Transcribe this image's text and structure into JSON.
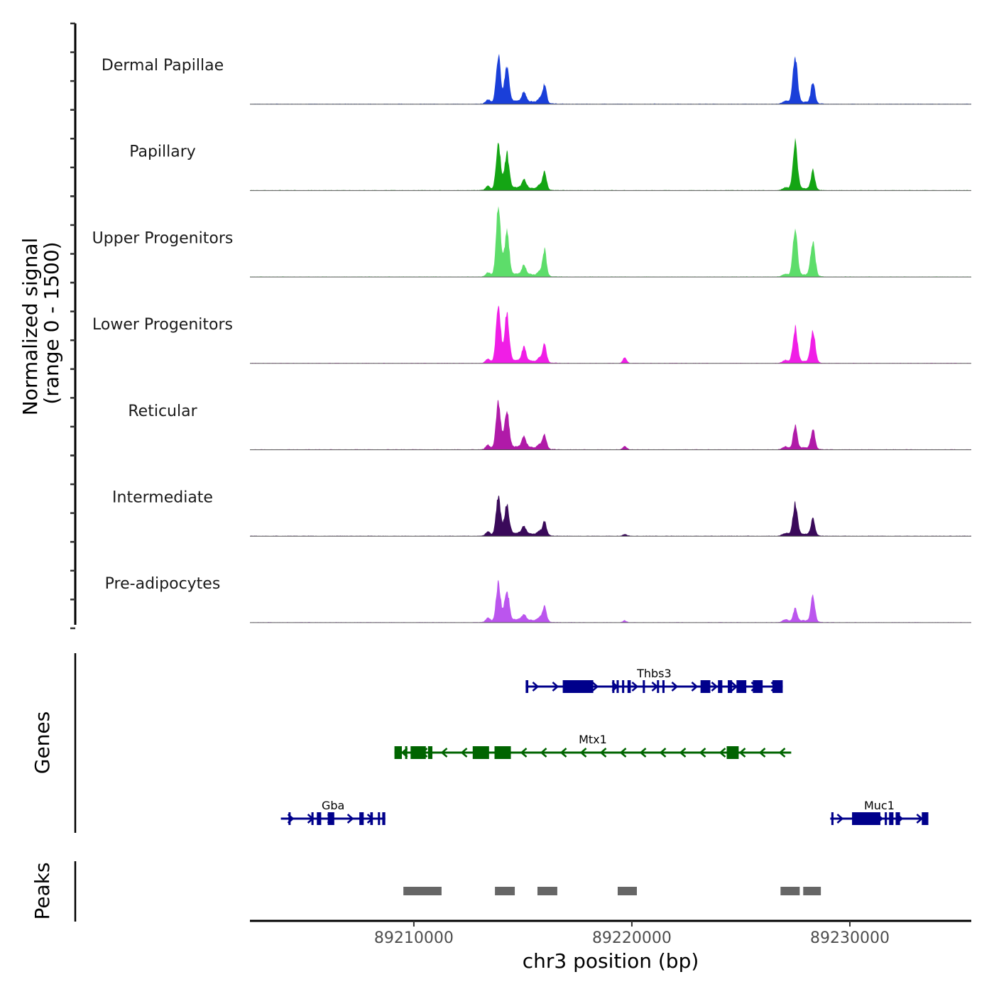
{
  "chart_data": {
    "type": "area",
    "title": "",
    "xlabel": "chr3 position (bp)",
    "ylabel": "Normalized signal\n(range 0 - 1500)",
    "ylabel_lines": [
      "Normalized signal",
      "(range 0 - 1500)"
    ],
    "xlim": [
      89202480,
      89235570
    ],
    "ylim": [
      0,
      1500
    ],
    "x_ticks": [
      89210000,
      89220000,
      89230000
    ],
    "x_tick_labels": [
      "89210000",
      "89220000",
      "89230000"
    ],
    "y_ticks_per_track": [
      0,
      500,
      1000,
      1500
    ],
    "grid": false,
    "legend": "none",
    "tracks": [
      {
        "name": "Dermal Papillae",
        "color": "#1a3fd9",
        "peaks": [
          [
            89213876,
            1000
          ],
          [
            89214267,
            780
          ],
          [
            89215049,
            200
          ],
          [
            89215993,
            400
          ],
          [
            89227492,
            1000
          ],
          [
            89228306,
            450
          ]
        ]
      },
      {
        "name": "Papillary",
        "color": "#14a514",
        "peaks": [
          [
            89213876,
            950
          ],
          [
            89214267,
            740
          ],
          [
            89215049,
            180
          ],
          [
            89215993,
            400
          ],
          [
            89227492,
            1000
          ],
          [
            89228306,
            400
          ]
        ]
      },
      {
        "name": "Upper Progenitors",
        "color": "#5ddd6a",
        "peaks": [
          [
            89213876,
            1450
          ],
          [
            89214267,
            930
          ],
          [
            89215049,
            200
          ],
          [
            89215993,
            560
          ],
          [
            89227492,
            1000
          ],
          [
            89228306,
            700
          ]
        ]
      },
      {
        "name": "Lower Progenitors",
        "color": "#f01ee6",
        "peaks": [
          [
            89213876,
            1300
          ],
          [
            89214267,
            1000
          ],
          [
            89215049,
            280
          ],
          [
            89215993,
            400
          ],
          [
            89219674,
            120
          ],
          [
            89227492,
            720
          ],
          [
            89228306,
            660
          ]
        ]
      },
      {
        "name": "Reticular",
        "color": "#b01aa8",
        "peaks": [
          [
            89213876,
            1040
          ],
          [
            89214267,
            780
          ],
          [
            89215049,
            230
          ],
          [
            89215993,
            310
          ],
          [
            89219674,
            70
          ],
          [
            89227492,
            510
          ],
          [
            89228306,
            430
          ]
        ]
      },
      {
        "name": "Intermediate",
        "color": "#3a0a5a",
        "peaks": [
          [
            89213876,
            820
          ],
          [
            89214267,
            630
          ],
          [
            89215049,
            150
          ],
          [
            89215993,
            290
          ],
          [
            89219674,
            40
          ],
          [
            89227492,
            650
          ],
          [
            89228306,
            340
          ]
        ]
      },
      {
        "name": "Pre-adipocytes",
        "color": "#bb55ee",
        "peaks": [
          [
            89213876,
            820
          ],
          [
            89214267,
            650
          ],
          [
            89215049,
            110
          ],
          [
            89215993,
            340
          ],
          [
            89219674,
            40
          ],
          [
            89227492,
            280
          ],
          [
            89228306,
            570
          ]
        ]
      }
    ],
    "genes_track_label": "Genes",
    "genes": [
      {
        "name": "Thbs3",
        "strand": "+",
        "start": 89215130,
        "end": 89226920,
        "row": 0,
        "color": "#00008b",
        "exons": [
          [
            89215130,
            89215250
          ],
          [
            89216830,
            89218230
          ],
          [
            89219100,
            89219200
          ],
          [
            89219300,
            89219400
          ],
          [
            89219550,
            89219650
          ],
          [
            89219800,
            89219950
          ],
          [
            89220500,
            89220600
          ],
          [
            89221150,
            89221250
          ],
          [
            89221400,
            89221500
          ],
          [
            89223150,
            89223600
          ],
          [
            89223950,
            89224150
          ],
          [
            89224400,
            89224600
          ],
          [
            89224800,
            89225250
          ],
          [
            89225550,
            89226000
          ],
          [
            89226450,
            89226920
          ]
        ]
      },
      {
        "name": "Mtx1",
        "strand": "-",
        "start": 89209110,
        "end": 89227310,
        "row": 1,
        "color": "#006400",
        "exons": [
          [
            89209110,
            89209450
          ],
          [
            89209600,
            89209700
          ],
          [
            89209850,
            89210550
          ],
          [
            89210650,
            89210850
          ],
          [
            89212700,
            89213450
          ],
          [
            89213700,
            89214450
          ],
          [
            89224350,
            89224900
          ]
        ]
      },
      {
        "name": "Gba",
        "strand": "+",
        "start": 89203900,
        "end": 89208690,
        "row": 2,
        "color": "#00008b",
        "exons": [
          [
            89204250,
            89204340
          ],
          [
            89205300,
            89205400
          ],
          [
            89205550,
            89205750
          ],
          [
            89206050,
            89206350
          ],
          [
            89207500,
            89207700
          ],
          [
            89208000,
            89208120
          ],
          [
            89208350,
            89208450
          ],
          [
            89208550,
            89208690
          ]
        ]
      },
      {
        "name": "Muc1",
        "strand": "+",
        "start": 89229100,
        "end": 89233600,
        "row": 2,
        "color": "#00008b",
        "exons": [
          [
            89229150,
            89229250
          ],
          [
            89230100,
            89231400
          ],
          [
            89231600,
            89231700
          ],
          [
            89231800,
            89232000
          ],
          [
            89232100,
            89232300
          ],
          [
            89233300,
            89233600
          ]
        ]
      }
    ],
    "peaks_track_label": "Peaks",
    "peak_regions": [
      [
        89209520,
        89211270
      ],
      [
        89213720,
        89214630
      ],
      [
        89215670,
        89216580
      ],
      [
        89219350,
        89220230
      ],
      [
        89226820,
        89227700
      ],
      [
        89227860,
        89228670
      ]
    ],
    "peak_color": "#666666"
  }
}
